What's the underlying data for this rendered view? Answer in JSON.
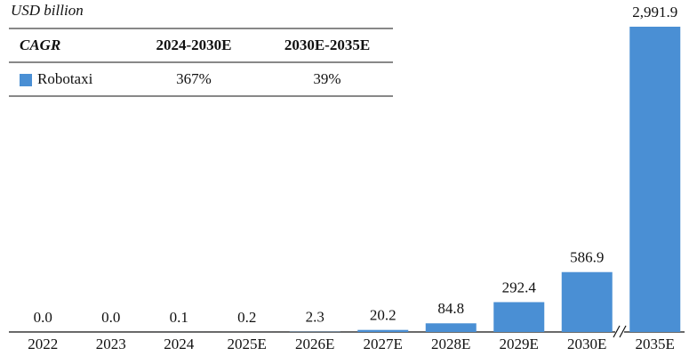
{
  "chart_data": {
    "type": "bar",
    "y_label": "USD billion",
    "categories": [
      "2022",
      "2023",
      "2024",
      "2025E",
      "2026E",
      "2027E",
      "2028E",
      "2029E",
      "2030E",
      "2035E"
    ],
    "series": [
      {
        "name": "Robotaxi",
        "color": "#4a8fd4",
        "values": [
          0,
          0,
          0.1,
          0.2,
          2.3,
          20.2,
          84.8,
          292.4,
          586.9,
          2991.9
        ],
        "value_labels": [
          "0.0",
          "0.0",
          "0.1",
          "0.2",
          "2.3",
          "20.2",
          "84.8",
          "292.4",
          "586.9",
          "2,991.9"
        ]
      }
    ],
    "cagr_table": {
      "header": [
        "CAGR",
        "2024-2030E",
        "2030E-2035E"
      ],
      "rows": [
        [
          "Robotaxi",
          "367%",
          "39%"
        ]
      ]
    }
  }
}
